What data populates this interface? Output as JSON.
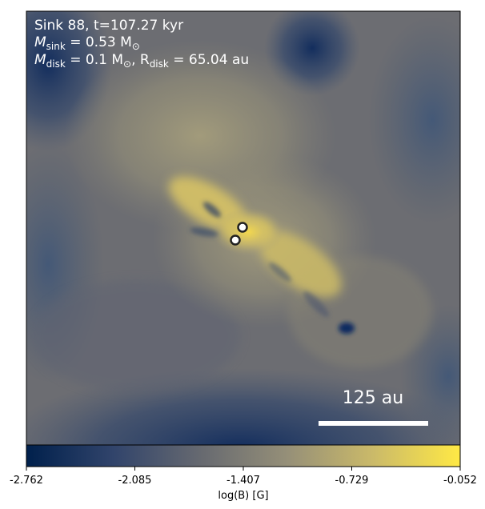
{
  "annotation": {
    "line1": "Sink 88, t=107.27 kyr",
    "line2_prefix": "M",
    "line2_sub": "sink",
    "line2_value": " = 0.53 M",
    "line2_unit_sub": "⊙",
    "line3_prefix": "M",
    "line3_sub": "disk",
    "line3_value": " = 0.1 M",
    "line3_unit_sub": "⊙",
    "line3_sep": ", R",
    "line3_sub2": "disk",
    "line3_value2": " = 65.04 au"
  },
  "scalebar": {
    "label": "125 au"
  },
  "colorbar": {
    "label": "log(B) [G]",
    "ticks": [
      "-2.762",
      "-2.085",
      "-1.407",
      "-0.729",
      "-0.052"
    ],
    "range": [
      -2.762,
      -0.052
    ],
    "colormap": "cividis",
    "colors": [
      "#00204c",
      "#31446b",
      "#666970",
      "#958f78",
      "#cbba69",
      "#ffe945"
    ]
  },
  "sinks": {
    "count": 2
  },
  "colors": {
    "text": "#ffffff",
    "sink_fill": "#ffffff",
    "sink_edge": "#222222",
    "background_mid": "#7d7b74"
  }
}
